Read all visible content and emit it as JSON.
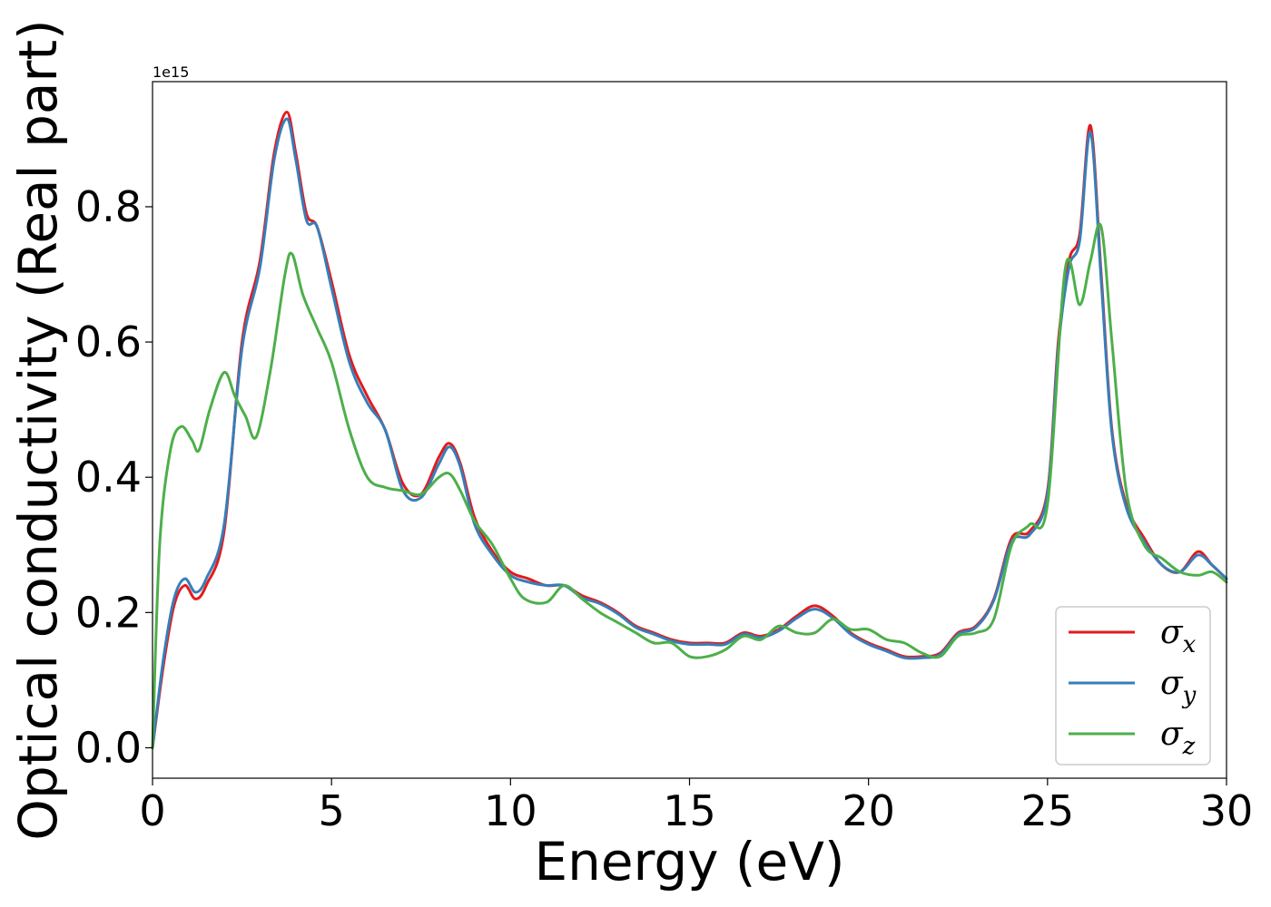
{
  "chart_data": {
    "type": "line",
    "title": "",
    "xlabel": "Energy (eV)",
    "ylabel": "Optical conductivity (Real part)",
    "y_offset_text": "1e15",
    "xlim": [
      0,
      30
    ],
    "ylim": [
      -0.045,
      0.985
    ],
    "x_ticks": [
      "0",
      "5",
      "10",
      "15",
      "20",
      "25",
      "30"
    ],
    "y_ticks": [
      "0.0",
      "0.2",
      "0.4",
      "0.6",
      "0.8"
    ],
    "grid": false,
    "legend_position": "lower-right",
    "series": [
      {
        "name": "σx",
        "base": "σ",
        "sub": "x",
        "color": "#e41a1c",
        "x": [
          0,
          0.3,
          0.6,
          0.9,
          1.2,
          1.5,
          2.0,
          2.5,
          3.0,
          3.4,
          3.75,
          4.0,
          4.3,
          4.6,
          5.0,
          5.5,
          6.0,
          6.5,
          7.0,
          7.5,
          8.0,
          8.3,
          8.6,
          9.0,
          9.5,
          10.0,
          10.5,
          11.0,
          11.5,
          12.0,
          12.5,
          13.0,
          13.5,
          14.0,
          14.5,
          15.0,
          15.5,
          16.0,
          16.5,
          17.0,
          17.5,
          18.0,
          18.5,
          19.0,
          19.5,
          20.0,
          20.5,
          21.0,
          21.5,
          22.0,
          22.5,
          23.0,
          23.5,
          24.0,
          24.5,
          25.0,
          25.3,
          25.6,
          25.9,
          26.2,
          26.5,
          26.8,
          27.2,
          27.7,
          28.2,
          28.7,
          29.2,
          29.6,
          30.0
        ],
        "y": [
          0.0,
          0.12,
          0.21,
          0.24,
          0.22,
          0.24,
          0.32,
          0.6,
          0.72,
          0.88,
          0.94,
          0.88,
          0.79,
          0.77,
          0.69,
          0.58,
          0.52,
          0.47,
          0.39,
          0.375,
          0.43,
          0.45,
          0.42,
          0.34,
          0.29,
          0.26,
          0.25,
          0.24,
          0.24,
          0.225,
          0.215,
          0.2,
          0.18,
          0.17,
          0.16,
          0.155,
          0.155,
          0.155,
          0.17,
          0.165,
          0.175,
          0.195,
          0.21,
          0.195,
          0.17,
          0.155,
          0.145,
          0.135,
          0.135,
          0.14,
          0.17,
          0.18,
          0.22,
          0.31,
          0.32,
          0.38,
          0.6,
          0.72,
          0.76,
          0.92,
          0.7,
          0.47,
          0.36,
          0.31,
          0.27,
          0.26,
          0.29,
          0.27,
          0.25
        ]
      },
      {
        "name": "σy",
        "base": "σ",
        "sub": "y",
        "color": "#377eb8",
        "x": [
          0,
          0.3,
          0.6,
          0.9,
          1.2,
          1.5,
          2.0,
          2.5,
          3.0,
          3.4,
          3.75,
          4.0,
          4.3,
          4.6,
          5.0,
          5.5,
          6.0,
          6.5,
          7.0,
          7.5,
          8.0,
          8.3,
          8.6,
          9.0,
          9.5,
          10.0,
          10.5,
          11.0,
          11.5,
          12.0,
          12.5,
          13.0,
          13.5,
          14.0,
          14.5,
          15.0,
          15.5,
          16.0,
          16.5,
          17.0,
          17.5,
          18.0,
          18.5,
          19.0,
          19.5,
          20.0,
          20.5,
          21.0,
          21.5,
          22.0,
          22.5,
          23.0,
          23.5,
          24.0,
          24.5,
          25.0,
          25.3,
          25.6,
          25.9,
          26.2,
          26.5,
          26.8,
          27.2,
          27.7,
          28.2,
          28.7,
          29.2,
          29.6,
          30.0
        ],
        "y": [
          0.0,
          0.13,
          0.22,
          0.25,
          0.23,
          0.25,
          0.33,
          0.59,
          0.71,
          0.87,
          0.93,
          0.87,
          0.78,
          0.77,
          0.68,
          0.57,
          0.51,
          0.47,
          0.38,
          0.37,
          0.42,
          0.445,
          0.415,
          0.33,
          0.285,
          0.255,
          0.245,
          0.24,
          0.24,
          0.222,
          0.213,
          0.198,
          0.178,
          0.168,
          0.158,
          0.153,
          0.153,
          0.153,
          0.168,
          0.163,
          0.173,
          0.192,
          0.205,
          0.192,
          0.168,
          0.153,
          0.143,
          0.133,
          0.133,
          0.138,
          0.168,
          0.178,
          0.218,
          0.305,
          0.315,
          0.375,
          0.59,
          0.71,
          0.75,
          0.91,
          0.69,
          0.465,
          0.355,
          0.305,
          0.27,
          0.26,
          0.285,
          0.27,
          0.25
        ]
      },
      {
        "name": "σz",
        "base": "σ",
        "sub": "z",
        "color": "#4daf4a",
        "x": [
          0,
          0.2,
          0.5,
          0.8,
          1.1,
          1.3,
          1.6,
          2.0,
          2.3,
          2.6,
          2.9,
          3.3,
          3.7,
          3.9,
          4.2,
          4.6,
          5.0,
          5.5,
          6.0,
          6.5,
          7.0,
          7.5,
          8.0,
          8.3,
          8.6,
          9.0,
          9.5,
          10.0,
          10.4,
          11.0,
          11.5,
          12.0,
          12.5,
          13.0,
          13.5,
          14.0,
          14.5,
          15.0,
          15.5,
          16.0,
          16.5,
          17.0,
          17.5,
          18.0,
          18.5,
          19.0,
          19.5,
          20.0,
          20.5,
          21.0,
          21.5,
          22.0,
          22.5,
          23.0,
          23.5,
          24.0,
          24.5,
          25.0,
          25.5,
          25.9,
          26.2,
          26.5,
          26.8,
          27.2,
          27.7,
          28.2,
          28.7,
          29.2,
          29.6,
          30.0
        ],
        "y": [
          0.0,
          0.3,
          0.44,
          0.475,
          0.455,
          0.44,
          0.5,
          0.555,
          0.52,
          0.49,
          0.46,
          0.56,
          0.7,
          0.73,
          0.67,
          0.62,
          0.57,
          0.47,
          0.4,
          0.385,
          0.38,
          0.375,
          0.4,
          0.405,
          0.38,
          0.335,
          0.3,
          0.25,
          0.22,
          0.215,
          0.24,
          0.22,
          0.2,
          0.185,
          0.17,
          0.155,
          0.155,
          0.135,
          0.135,
          0.145,
          0.165,
          0.16,
          0.18,
          0.17,
          0.17,
          0.19,
          0.175,
          0.175,
          0.16,
          0.155,
          0.14,
          0.135,
          0.165,
          0.17,
          0.19,
          0.3,
          0.33,
          0.36,
          0.71,
          0.655,
          0.72,
          0.77,
          0.6,
          0.38,
          0.3,
          0.28,
          0.26,
          0.255,
          0.26,
          0.245
        ]
      }
    ]
  }
}
